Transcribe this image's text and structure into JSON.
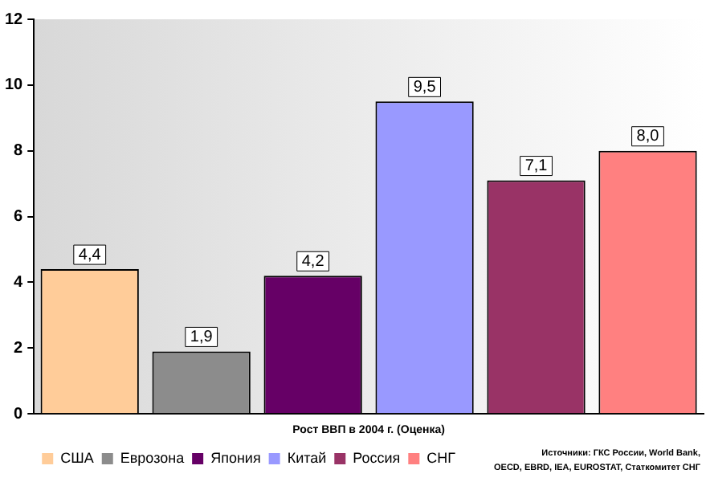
{
  "chart_data": {
    "type": "bar",
    "xlabel": "Рост ВВП в 2004 г. (Оценка)",
    "categories": [
      null,
      null,
      null,
      null,
      null,
      null
    ],
    "series": [
      {
        "name": "США",
        "color": "#ffcc99",
        "values": [
          4.4,
          null,
          null,
          null,
          null,
          null
        ],
        "value_labels": [
          "4,4",
          null,
          null,
          null,
          null,
          null
        ]
      },
      {
        "name": "Еврозона",
        "color": "#8c8c8c",
        "values": [
          null,
          1.9,
          null,
          null,
          null,
          null
        ],
        "value_labels": [
          null,
          "1,9",
          null,
          null,
          null,
          null
        ]
      },
      {
        "name": "Япония",
        "color": "#660066",
        "values": [
          null,
          null,
          4.2,
          null,
          null,
          null
        ],
        "value_labels": [
          null,
          null,
          "4,2",
          null,
          null,
          null
        ]
      },
      {
        "name": "Китай",
        "color": "#9999ff",
        "values": [
          null,
          null,
          null,
          9.5,
          null,
          null
        ],
        "value_labels": [
          null,
          null,
          null,
          "9,5",
          null,
          null
        ]
      },
      {
        "name": "Россия",
        "color": "#993366",
        "values": [
          null,
          null,
          null,
          null,
          7.1,
          null
        ],
        "value_labels": [
          null,
          null,
          null,
          null,
          "7,1",
          null
        ]
      },
      {
        "name": "СНГ",
        "color": "#ff8080",
        "values": [
          null,
          null,
          null,
          null,
          null,
          8.0
        ],
        "value_labels": [
          null,
          null,
          null,
          null,
          null,
          "8,0"
        ]
      }
    ],
    "ylim": [
      0,
      12
    ],
    "yticks": [
      0,
      2,
      4,
      6,
      8,
      10,
      12
    ],
    "grid": false,
    "legend": "bottom left",
    "annotations": [
      "Источники: ГКС России, World Bank, OECD, EBRD, IEA, EUROSTAT, Статкомитет СНГ"
    ]
  }
}
